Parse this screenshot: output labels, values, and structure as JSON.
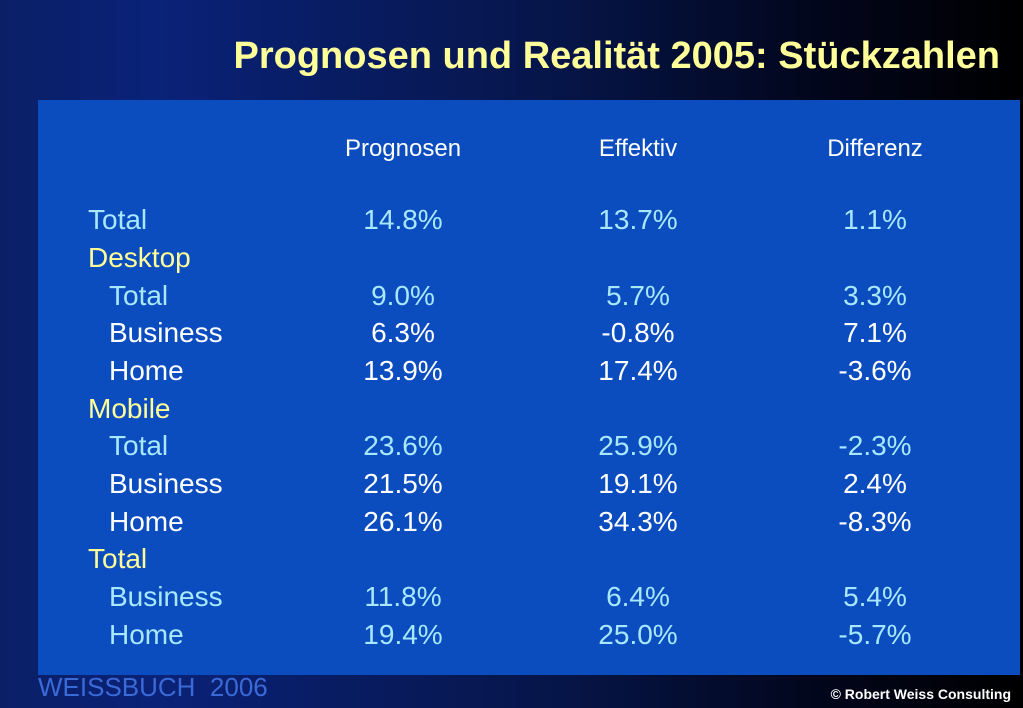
{
  "slide": {
    "title": "Prognosen und Realität 2005: Stückzahlen",
    "footer_left": "WEISSBUCH  2006",
    "footer_right": "© Robert Weiss Consulting"
  },
  "colors": {
    "title": "#ffff99",
    "panel": "#0b4dbf",
    "section_label": "#ffff99",
    "light_text": "#a8e8ff",
    "bright_text": "#ffffff"
  },
  "table": {
    "headers": [
      "Prognosen",
      "Effektiv",
      "Differenz"
    ],
    "rows": [
      {
        "label": "Total",
        "values": [
          "14.8%",
          "13.7%",
          "1.1%"
        ]
      },
      {
        "label": "Desktop",
        "values": []
      },
      {
        "label": "Total",
        "values": [
          "9.0%",
          "5.7%",
          "3.3%"
        ]
      },
      {
        "label": "Business",
        "values": [
          "6.3%",
          "-0.8%",
          "7.1%"
        ]
      },
      {
        "label": "Home",
        "values": [
          "13.9%",
          "17.4%",
          "-3.6%"
        ]
      },
      {
        "label": "Mobile",
        "values": []
      },
      {
        "label": "Total",
        "values": [
          "23.6%",
          "25.9%",
          "-2.3%"
        ]
      },
      {
        "label": "Business",
        "values": [
          "21.5%",
          "19.1%",
          "2.4%"
        ]
      },
      {
        "label": "Home",
        "values": [
          "26.1%",
          "34.3%",
          "-8.3%"
        ]
      },
      {
        "label": "Total",
        "values": []
      },
      {
        "label": "Business",
        "values": [
          "11.8%",
          "6.4%",
          "5.4%"
        ]
      },
      {
        "label": "Home",
        "values": [
          "19.4%",
          "25.0%",
          "-5.7%"
        ]
      }
    ]
  }
}
